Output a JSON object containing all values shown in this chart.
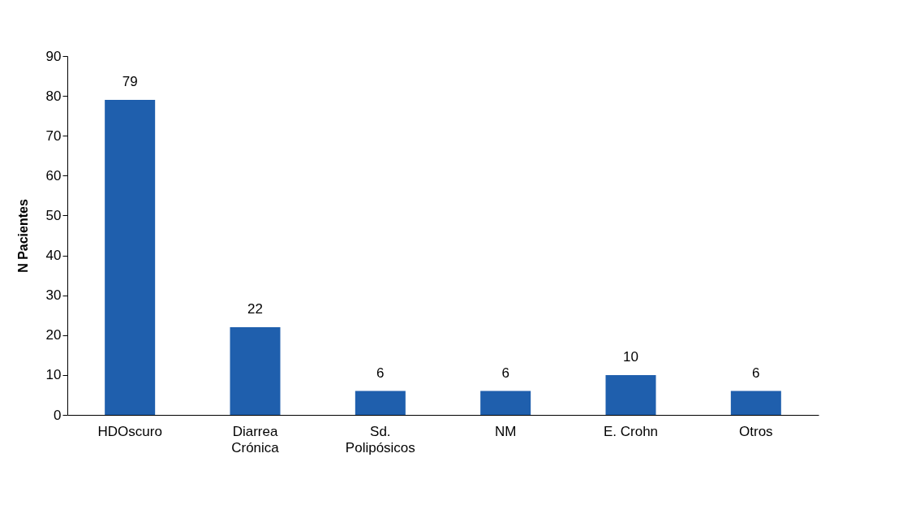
{
  "chart_data": {
    "type": "bar",
    "ylabel": "N Pacientes",
    "categories": [
      "HDOscuro",
      "Diarrea\nCrónica",
      "Sd.\nPolipósicos",
      "NM",
      "E. Crohn",
      "Otros"
    ],
    "values": [
      79,
      22,
      6,
      6,
      10,
      6
    ],
    "color": "#1f5fad",
    "ylim": [
      0,
      90
    ],
    "yticks": [
      0,
      10,
      20,
      30,
      40,
      50,
      60,
      70,
      80,
      90
    ],
    "grid": false,
    "data_labels": true
  }
}
